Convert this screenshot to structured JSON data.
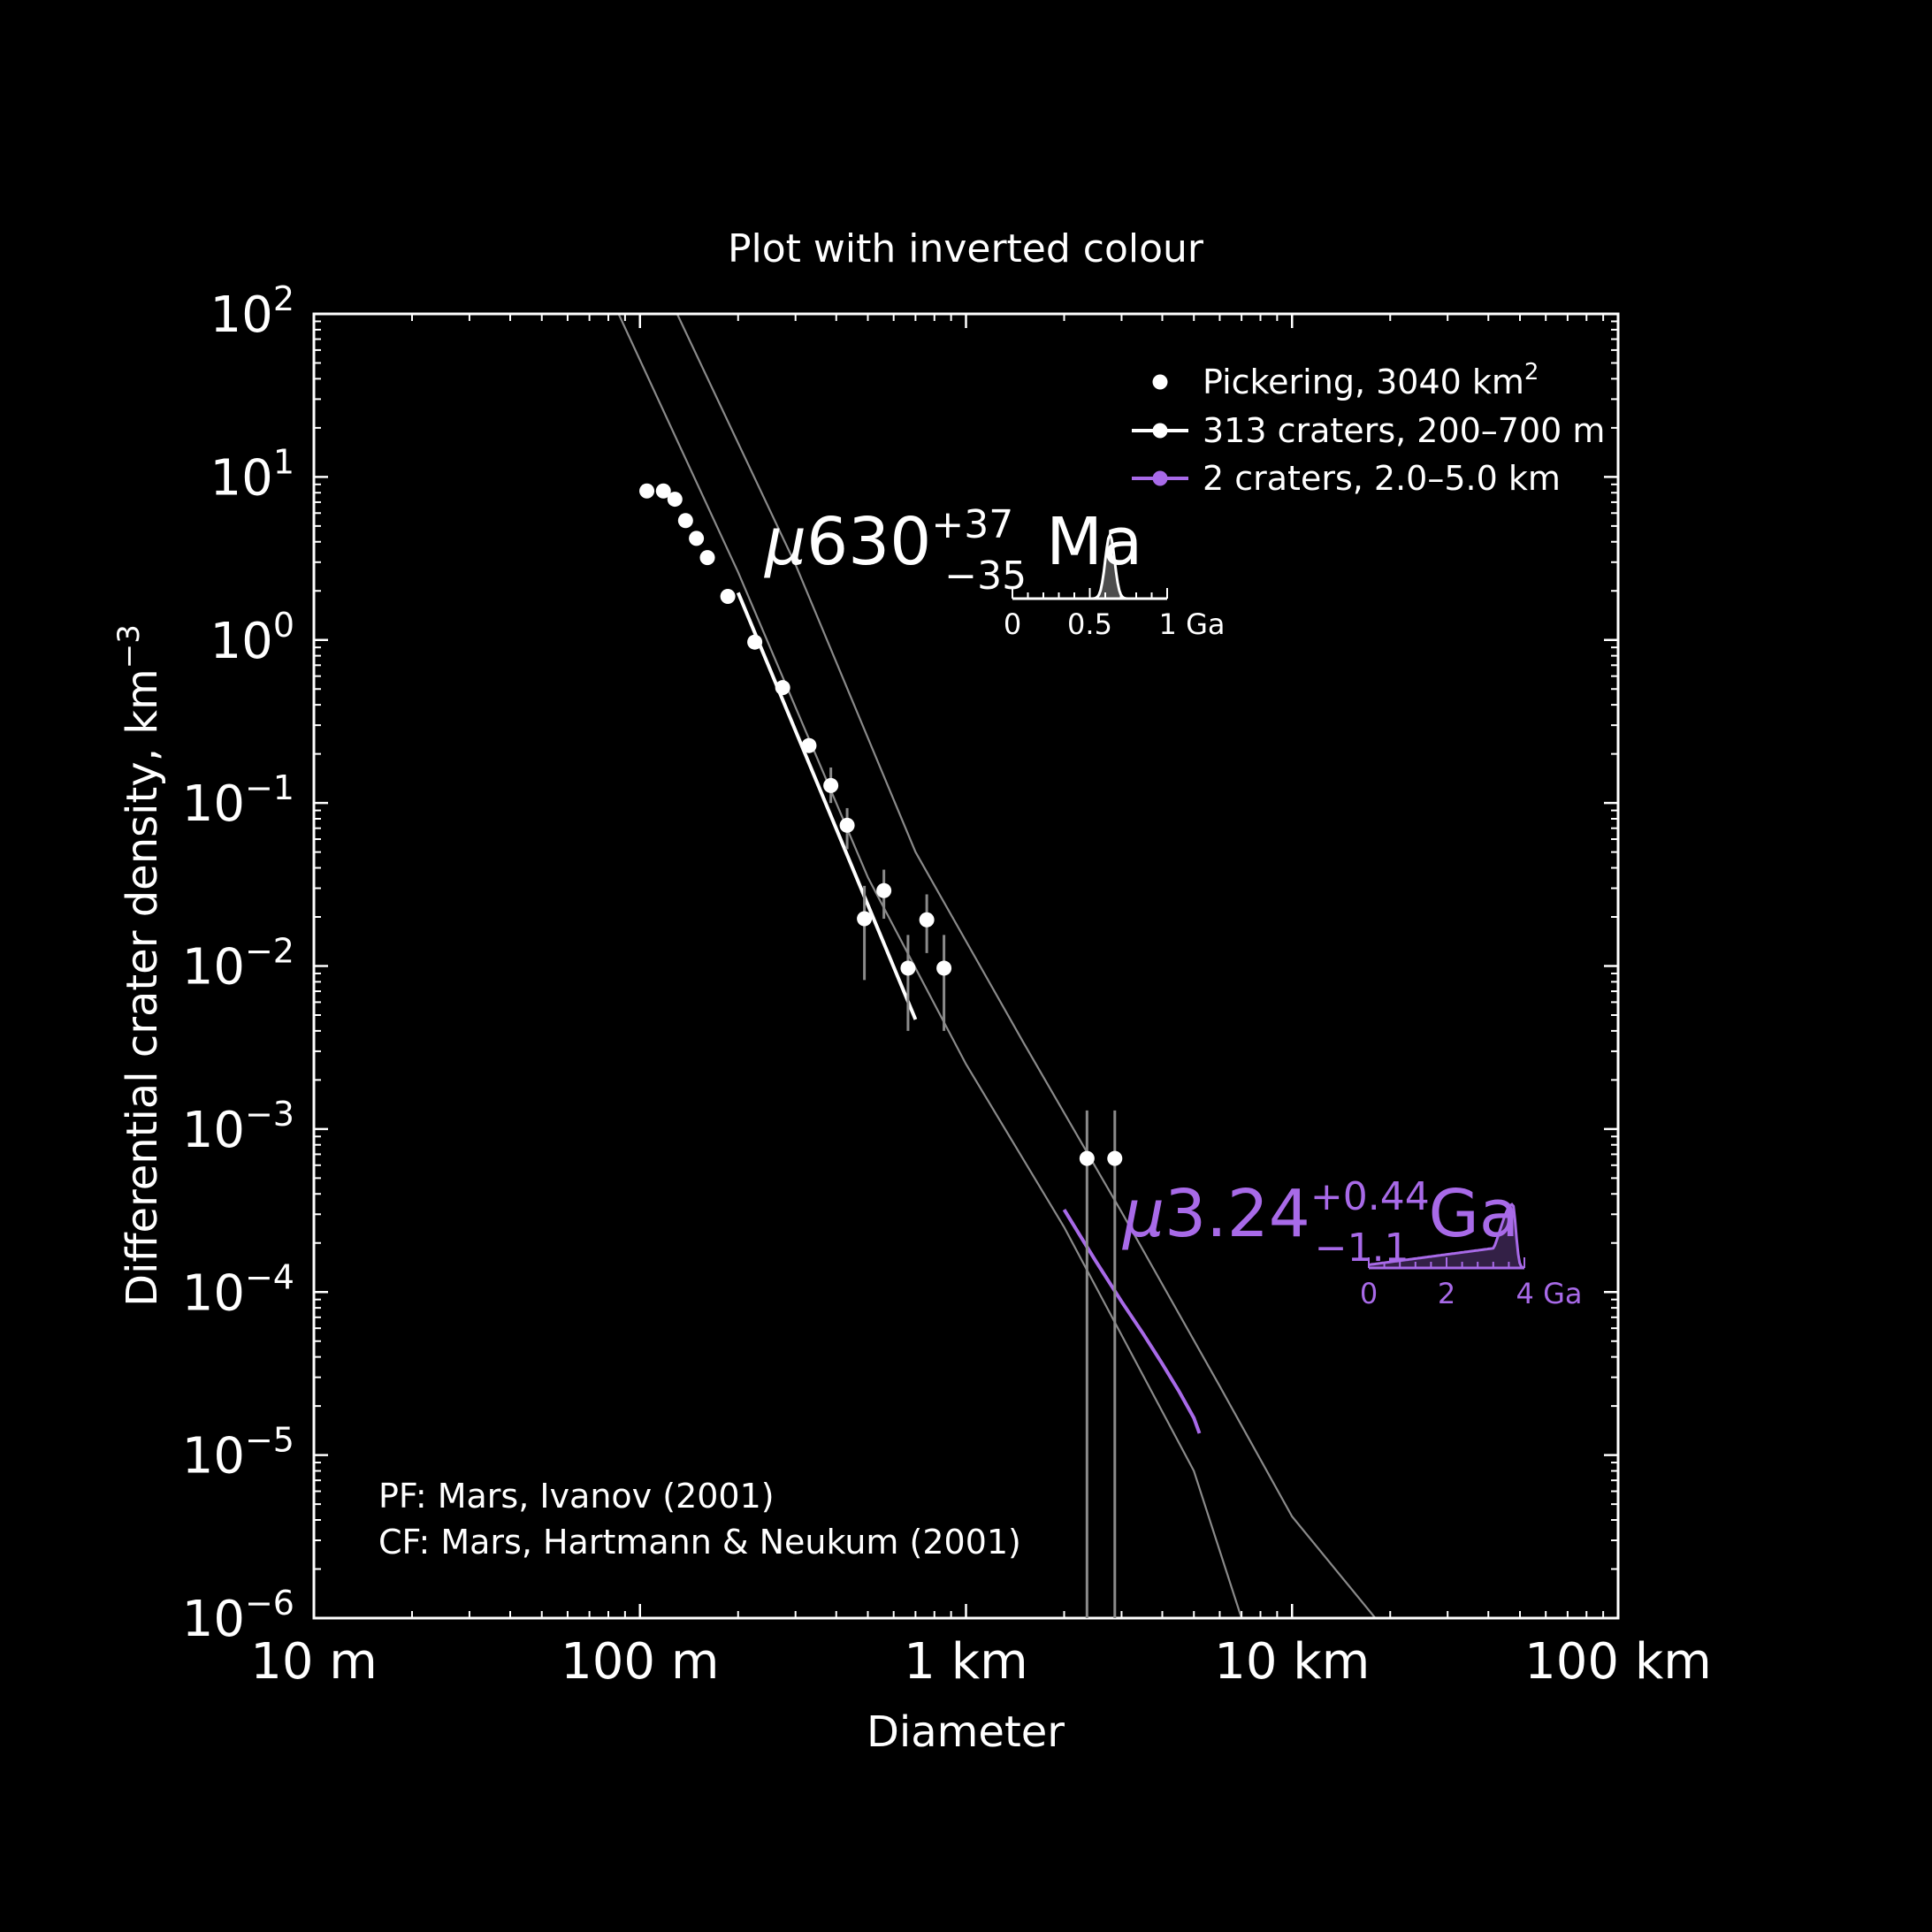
{
  "chart_data": {
    "type": "scatter",
    "title": "Plot with inverted colour",
    "xlabel": "Diameter",
    "ylabel": "Differential crater density, km",
    "ylabel_exp": "−3",
    "x_scale": "log",
    "y_scale": "log",
    "x_range_km": [
      0.01,
      100
    ],
    "y_range": [
      1e-06,
      100
    ],
    "x_ticks": [
      {
        "value_km": 0.01,
        "label": "10 m"
      },
      {
        "value_km": 0.1,
        "label": "100 m"
      },
      {
        "value_km": 1,
        "label": "1 km"
      },
      {
        "value_km": 10,
        "label": "10 km"
      },
      {
        "value_km": 100,
        "label": "100 km"
      }
    ],
    "y_ticks": [
      {
        "exp": 2,
        "base": "10",
        "sup": "2"
      },
      {
        "exp": 1,
        "base": "10",
        "sup": "1"
      },
      {
        "exp": 0,
        "base": "10",
        "sup": "0"
      },
      {
        "exp": -1,
        "base": "10",
        "sup": "−1"
      },
      {
        "exp": -2,
        "base": "10",
        "sup": "−2"
      },
      {
        "exp": -3,
        "base": "10",
        "sup": "−3"
      },
      {
        "exp": -4,
        "base": "10",
        "sup": "−4"
      },
      {
        "exp": -5,
        "base": "10",
        "sup": "−5"
      },
      {
        "exp": -6,
        "base": "10",
        "sup": "−6"
      }
    ],
    "legend": {
      "placement": "top-right",
      "entries": [
        {
          "text": "Pickering, 3040 km",
          "sup": "2",
          "marker": "dot",
          "color": "#ffffff"
        },
        {
          "text": "313 craters, 200–700 m",
          "marker": "line-dot",
          "color": "#ffffff"
        },
        {
          "text": "2 craters, 2.0–5.0 km",
          "marker": "line-dot",
          "color": "#a86ae8"
        }
      ]
    },
    "points": [
      {
        "d_km": 0.105,
        "y": 8.2
      },
      {
        "d_km": 0.118,
        "y": 8.2
      },
      {
        "d_km": 0.128,
        "y": 7.3
      },
      {
        "d_km": 0.138,
        "y": 5.4
      },
      {
        "d_km": 0.149,
        "y": 4.2
      },
      {
        "d_km": 0.161,
        "y": 3.2
      },
      {
        "d_km": 0.186,
        "y": 1.85
      },
      {
        "d_km": 0.225,
        "y": 0.97
      },
      {
        "d_km": 0.274,
        "y": 0.51
      },
      {
        "d_km": 0.33,
        "y": 0.225
      },
      {
        "d_km": 0.385,
        "y": 0.128,
        "err": [
          0.1,
          0.165
        ]
      },
      {
        "d_km": 0.432,
        "y": 0.073,
        "err": [
          0.052,
          0.093
        ]
      },
      {
        "d_km": 0.488,
        "y": 0.0195,
        "err": [
          0.0082,
          0.031
        ]
      },
      {
        "d_km": 0.56,
        "y": 0.029,
        "err": [
          0.0195,
          0.039
        ]
      },
      {
        "d_km": 0.664,
        "y": 0.0097,
        "err": [
          0.004,
          0.0155
        ]
      },
      {
        "d_km": 0.758,
        "y": 0.0192,
        "err": [
          0.012,
          0.0275
        ]
      },
      {
        "d_km": 0.856,
        "y": 0.0097,
        "err": [
          0.004,
          0.0155
        ]
      },
      {
        "d_km": 2.35,
        "y": 0.00066,
        "err": [
          1e-06,
          0.0013
        ]
      },
      {
        "d_km": 2.86,
        "y": 0.00066,
        "err": [
          1e-06,
          0.0013
        ]
      }
    ],
    "fits": [
      {
        "name": "313 craters, 200–700 m",
        "color": "#ffffff",
        "x_km": [
          0.2,
          0.7
        ],
        "y": [
          1.95,
          0.0047
        ]
      },
      {
        "name": "2 craters, 2.0–5.0 km",
        "color": "#a86ae8",
        "x_km": [
          2.0,
          2.5,
          3.0,
          3.5,
          4.0,
          4.5,
          5.0,
          5.2
        ],
        "y": [
          0.00032,
          0.000155,
          8.75e-05,
          5.52e-05,
          3.63e-05,
          2.46e-05,
          1.69e-05,
          1.36e-05
        ]
      }
    ],
    "isochrons": [
      {
        "x_km": [
          0.086,
          0.2,
          0.5,
          1.0,
          2.0,
          5.0,
          7.0
        ],
        "y": [
          100,
          2.6,
          0.035,
          0.0025,
          0.00025,
          8e-06,
          1e-06
        ]
      },
      {
        "x_km": [
          0.13,
          0.3,
          0.7,
          1.5,
          3.0,
          6.0,
          10.0,
          18.0
        ],
        "y": [
          100,
          2.9,
          0.05,
          0.0034,
          0.00031,
          2.65e-05,
          4.2e-06,
          1e-06
        ]
      }
    ],
    "ages": [
      {
        "mu": "μ",
        "value": "630",
        "plus": "+37",
        "minus": "−35",
        "unit": "Ma",
        "color": "#ffffff",
        "inset": {
          "x_max": 1,
          "tick_labels": [
            "0",
            "0.5",
            "1 Ga"
          ],
          "peak": 0.63,
          "width": 0.03
        }
      },
      {
        "mu": "μ",
        "value": "3.24",
        "plus": "+0.44",
        "minus": "−1.1",
        "unit": "Ga",
        "color": "#a86ae8",
        "inset": {
          "x_max": 4,
          "tick_labels": [
            "0",
            "2",
            "4 Ga"
          ],
          "peak": 3.7,
          "width": 0.08
        }
      }
    ],
    "notes": [
      "PF: Mars, Ivanov (2001)",
      "CF: Mars, Hartmann & Neukum (2001)"
    ],
    "colors": {
      "background": "#000000",
      "foreground": "#ffffff",
      "isochron": "#8a8a8a",
      "accent": "#a86ae8"
    }
  }
}
